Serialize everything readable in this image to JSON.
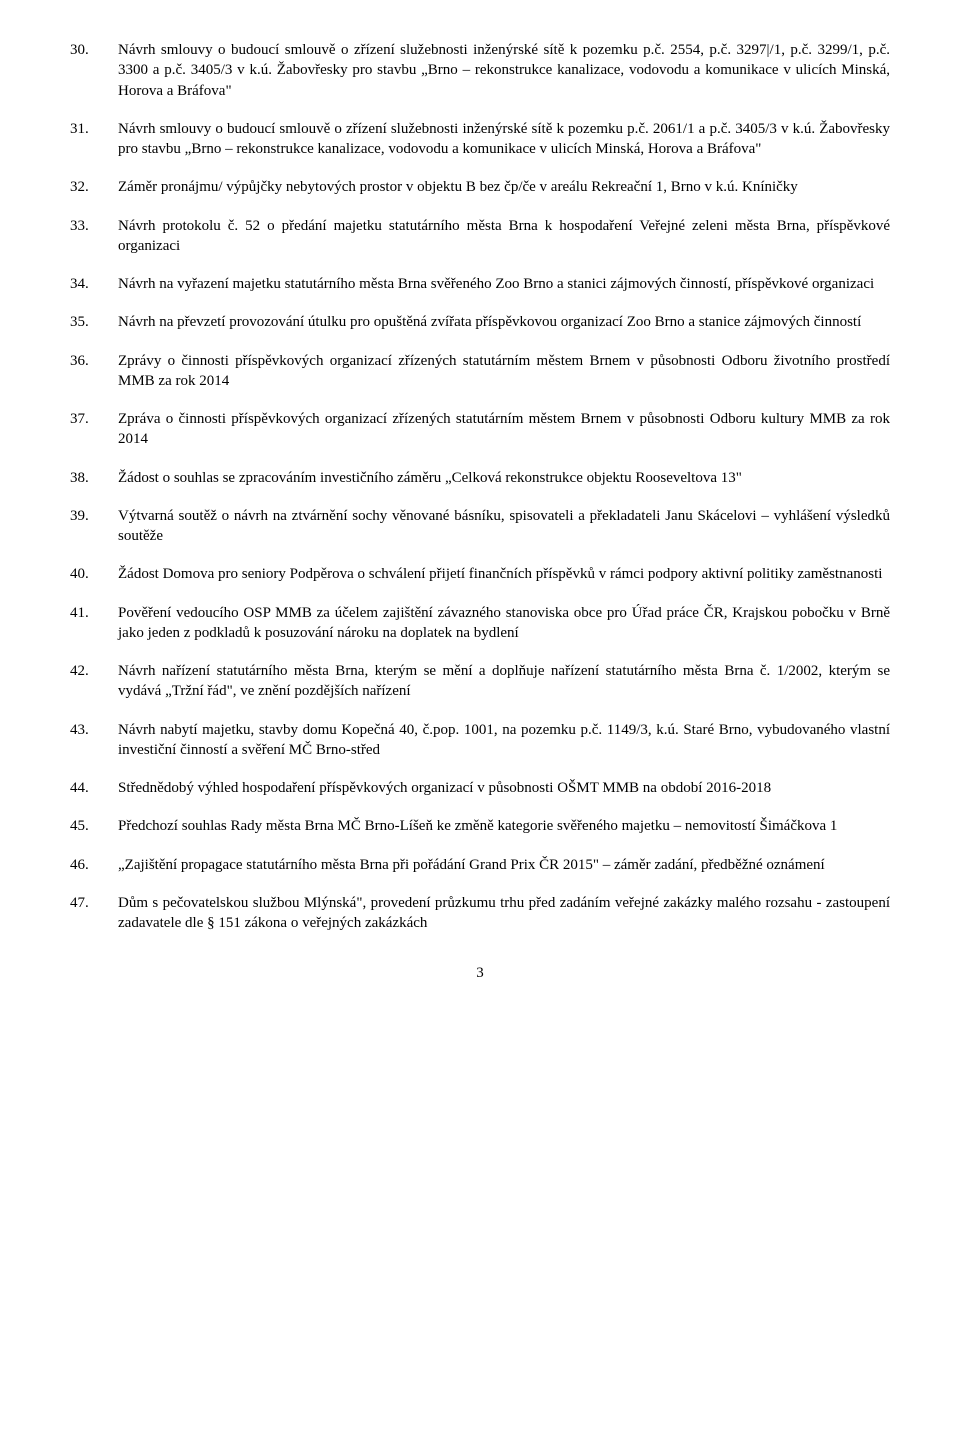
{
  "items": [
    {
      "number": "30.",
      "text": "Návrh smlouvy o budoucí smlouvě o zřízení služebnosti inženýrské sítě k pozemku p.č. 2554, p.č. 3297|/1, p.č. 3299/1, p.č. 3300 a p.č. 3405/3 v k.ú. Žabovřesky pro stavbu „Brno – rekonstrukce kanalizace, vodovodu a komunikace v ulicích Minská, Horova a Bráfova\""
    },
    {
      "number": "31.",
      "text": "Návrh smlouvy o budoucí smlouvě o zřízení služebnosti inženýrské sítě k pozemku p.č. 2061/1 a p.č. 3405/3 v k.ú. Žabovřesky pro stavbu „Brno – rekonstrukce kanalizace, vodovodu a komunikace v ulicích Minská, Horova a Bráfova\""
    },
    {
      "number": "32.",
      "text": "Záměr pronájmu/ výpůjčky nebytových prostor v objektu B bez čp/če v areálu Rekreační 1, Brno v k.ú. Kníničky"
    },
    {
      "number": "33.",
      "text": "Návrh protokolu č. 52 o předání majetku statutárního města Brna k hospodaření Veřejné zeleni města Brna, příspěvkové organizaci"
    },
    {
      "number": "34.",
      "text": "Návrh na vyřazení majetku statutárního města Brna svěřeného Zoo Brno a stanici zájmových činností, příspěvkové organizaci"
    },
    {
      "number": "35.",
      "text": "Návrh na převzetí provozování útulku pro opuštěná zvířata příspěvkovou organizací Zoo Brno a stanice zájmových činností"
    },
    {
      "number": "36.",
      "text": "Zprávy o činnosti příspěvkových organizací zřízených statutárním městem Brnem v působnosti Odboru životního prostředí MMB za rok 2014"
    },
    {
      "number": "37.",
      "text": "Zpráva o činnosti příspěvkových organizací zřízených statutárním městem Brnem v působnosti Odboru kultury MMB za rok 2014"
    },
    {
      "number": "38.",
      "text": "Žádost o souhlas se zpracováním investičního záměru „Celková rekonstrukce objektu Rooseveltova 13\""
    },
    {
      "number": "39.",
      "text": "Výtvarná soutěž o návrh na ztvárnění sochy věnované básníku, spisovateli a překladateli Janu Skácelovi – vyhlášení výsledků soutěže"
    },
    {
      "number": "40.",
      "text": "Žádost Domova pro seniory Podpěrova o schválení přijetí finančních příspěvků v rámci podpory aktivní politiky zaměstnanosti"
    },
    {
      "number": "41.",
      "text": "Pověření vedoucího OSP MMB za účelem zajištění závazného stanoviska obce pro Úřad práce ČR, Krajskou pobočku v Brně jako jeden z podkladů k posuzování nároku na doplatek na bydlení"
    },
    {
      "number": "42.",
      "text": "Návrh nařízení statutárního města Brna, kterým se mění a doplňuje nařízení statutárního města Brna č. 1/2002, kterým se vydává „Tržní řád\", ve znění pozdějších nařízení"
    },
    {
      "number": "43.",
      "text": "Návrh nabytí majetku, stavby domu Kopečná 40, č.pop. 1001, na pozemku p.č. 1149/3, k.ú. Staré Brno, vybudovaného vlastní investiční činností a svěření MČ Brno-střed"
    },
    {
      "number": "44.",
      "text": "Střednědobý výhled hospodaření příspěvkových organizací v působnosti OŠMT MMB na období 2016-2018"
    },
    {
      "number": "45.",
      "text": "Předchozí souhlas Rady města Brna MČ Brno-Líšeň ke změně kategorie svěřeného majetku – nemovitostí Šimáčkova 1"
    },
    {
      "number": "46.",
      "text": "„Zajištění propagace statutárního města Brna při pořádání Grand Prix ČR 2015\" – záměr zadání, předběžné oznámení"
    },
    {
      "number": "47.",
      "text": "Dům s pečovatelskou službou Mlýnská\", provedení průzkumu trhu před zadáním veřejné zakázky malého rozsahu - zastoupení zadavatele dle § 151 zákona o veřejných zakázkách"
    }
  ],
  "pageNumber": "3"
}
